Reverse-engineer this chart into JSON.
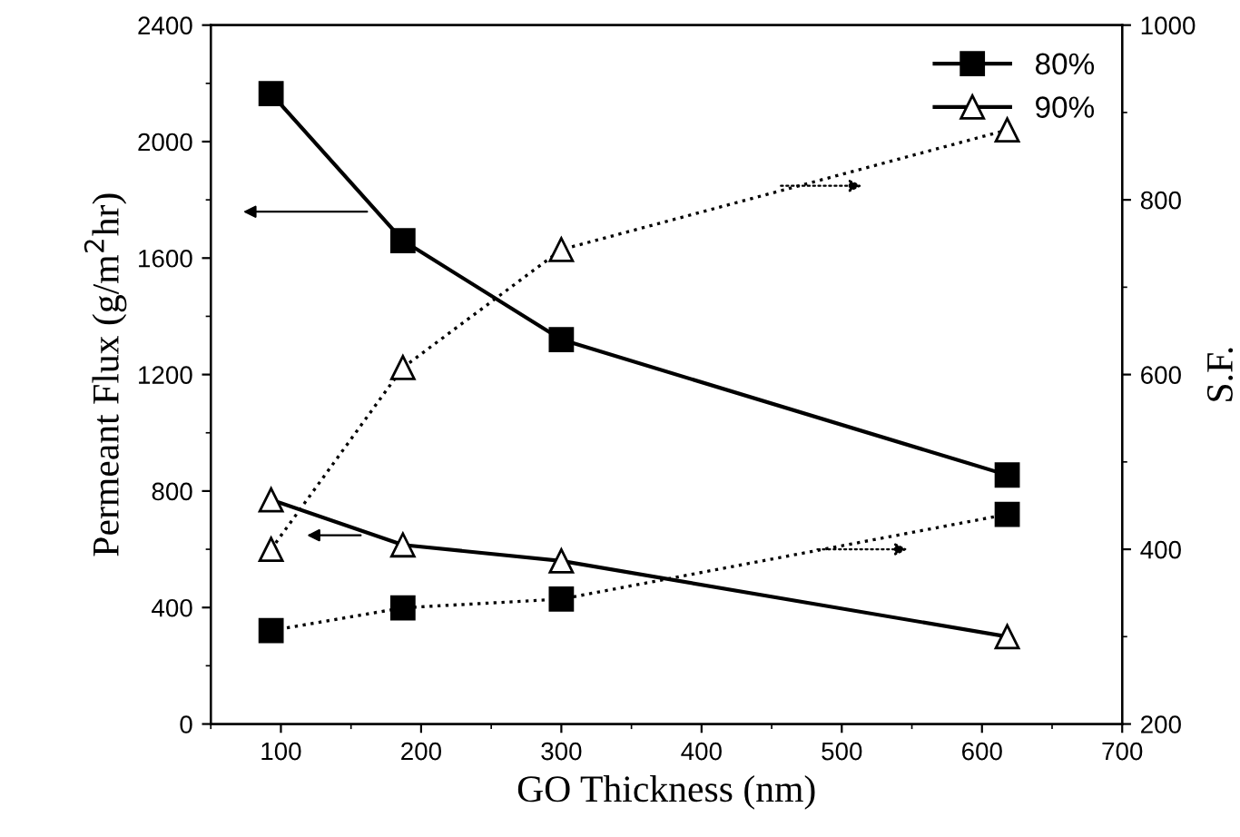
{
  "chart_data": {
    "type": "line",
    "xlabel": "GO Thickness (nm)",
    "ylabel": "Permeant Flux (g/m$^{2}$hr)",
    "y2label": "S.F.",
    "x": [
      93,
      187,
      300,
      618
    ],
    "series": [
      {
        "name": "80%",
        "color": "#000000",
        "marker": "square",
        "line_style": "solid",
        "values": [
          2165,
          1660,
          1320,
          855
        ]
      },
      {
        "name": "90%",
        "color": "#000000",
        "marker": "triangle",
        "line_style": "solid",
        "values": [
          770,
          615,
          560,
          300
        ]
      },
      {
        "color": "#000000",
        "marker": "square",
        "line_style": "dotted",
        "axis": "y2",
        "values": [
          307,
          333,
          343,
          440
        ]
      },
      {
        "color": "#000000",
        "marker": "triangle",
        "line_style": "dotted",
        "axis": "y2",
        "values": [
          400,
          608,
          743,
          880
        ]
      }
    ],
    "xlim": [
      50,
      700
    ],
    "xticks": [
      100,
      200,
      300,
      400,
      500,
      600,
      700
    ],
    "ylim": [
      0,
      2400
    ],
    "yticks": [
      0,
      400,
      800,
      1200,
      1600,
      2000,
      2400
    ],
    "y2lim": [
      200,
      1000
    ],
    "y2ticks": [
      200,
      400,
      600,
      800,
      1000
    ],
    "grid": false,
    "legend": "top right"
  }
}
